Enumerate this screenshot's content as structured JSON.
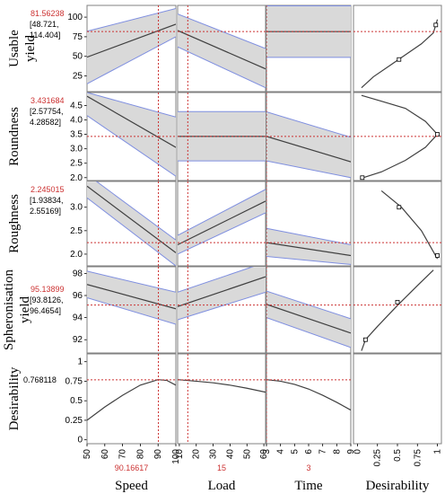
{
  "chart_data": {
    "type": "line",
    "title": "",
    "colors": {
      "band_fill": "#d9d9d9",
      "band_edge": "#7f8fe0",
      "line": "#404040",
      "crosshair": "#cc3333",
      "value_red": "#cc3333",
      "frame": "#808080"
    },
    "factors": [
      {
        "name": "Speed",
        "setting": "90.16617",
        "ticks": [
          "50",
          "60",
          "70",
          "80",
          "90",
          "100"
        ],
        "range": [
          50,
          100
        ],
        "current": 90.16617
      },
      {
        "name": "Load",
        "setting": "15",
        "ticks": [
          "10",
          "20",
          "30",
          "40",
          "50",
          "60"
        ],
        "range": [
          9,
          61
        ],
        "current": 15
      },
      {
        "name": "Time",
        "setting": "3",
        "ticks": [
          "3",
          "4",
          "5",
          "6",
          "7",
          "8",
          "9"
        ],
        "range": [
          3,
          9
        ],
        "current": 3
      },
      {
        "name": "Desirability",
        "setting": "",
        "ticks": [
          "0",
          "0.25",
          "0.5",
          "0.75",
          "1"
        ],
        "range": [
          -0.05,
          1.05
        ],
        "current": null
      }
    ],
    "responses": [
      {
        "name": "Usable yield",
        "value": "81.56238",
        "ci": "[48.721,",
        "ci2": "114.404]",
        "ticks": [
          "25",
          "50",
          "75",
          "100"
        ],
        "yrange": [
          5,
          115
        ],
        "ycur": 81.56,
        "panels": [
          {
            "x": [
              50,
              100
            ],
            "y": [
              49,
              91
            ],
            "lo": [
              15,
              75
            ],
            "hi": [
              82,
              111
            ]
          },
          {
            "x": [
              9,
              61
            ],
            "y": [
              83,
              34
            ],
            "lo": [
              62,
              10
            ],
            "hi": [
              104,
              60
            ]
          },
          {
            "x": [
              3,
              9
            ],
            "y": [
              81.56,
              81.56
            ],
            "lo": [
              48.7,
              48.7
            ],
            "hi": [
              114.4,
              114.4
            ]
          }
        ],
        "desir": {
          "x": [
            0.05,
            0.2,
            0.4,
            0.6,
            0.8,
            0.95,
            1.0
          ],
          "y": [
            10,
            24,
            38,
            52,
            66,
            80,
            97
          ],
          "markers": [
            [
              0.52,
              46
            ],
            [
              0.98,
              90
            ]
          ]
        }
      },
      {
        "name": "Roundness",
        "value": "3.431684",
        "ci": "[2.57754,",
        "ci2": "4.28582]",
        "ticks": [
          "2.0",
          "2.5",
          "3.0",
          "3.5",
          "4.0",
          "4.5"
        ],
        "yrange": [
          1.9,
          4.95
        ],
        "ycur": 3.43,
        "panels": [
          {
            "x": [
              50,
              100
            ],
            "y": [
              4.82,
              3.05
            ],
            "lo": [
              4.15,
              2.05
            ],
            "hi": [
              4.95,
              4.1
            ]
          },
          {
            "x": [
              9,
              61
            ],
            "y": [
              3.43,
              3.43
            ],
            "lo": [
              2.58,
              2.58
            ],
            "hi": [
              4.29,
              4.29
            ]
          },
          {
            "x": [
              3,
              9
            ],
            "y": [
              3.43,
              2.55
            ],
            "lo": [
              2.58,
              2.0
            ],
            "hi": [
              4.28,
              3.4
            ]
          }
        ],
        "desir": {
          "x": [
            0.05,
            0.3,
            0.6,
            0.85,
            1.0,
            0.85,
            0.6,
            0.3,
            0.05,
            0.05
          ],
          "y": [
            1.98,
            2.2,
            2.6,
            3.05,
            3.5,
            3.95,
            4.4,
            4.65,
            4.85,
            4.85
          ],
          "markers": [
            [
              0.06,
              2.0
            ],
            [
              1.0,
              3.5
            ]
          ]
        }
      },
      {
        "name": "Roughness",
        "value": "2.245015",
        "ci": "[1.93834,",
        "ci2": "2.55169]",
        "ticks": [
          "2.0",
          "2.5",
          "3.0"
        ],
        "yrange": [
          1.75,
          3.55
        ],
        "ycur": 2.245,
        "panels": [
          {
            "x": [
              50,
              100
            ],
            "y": [
              3.45,
              2.03
            ],
            "lo": [
              3.2,
              1.75
            ],
            "hi": [
              3.7,
              2.3
            ]
          },
          {
            "x": [
              9,
              61
            ],
            "y": [
              2.2,
              3.13
            ],
            "lo": [
              2.0,
              2.88
            ],
            "hi": [
              2.4,
              3.38
            ]
          },
          {
            "x": [
              3,
              9
            ],
            "y": [
              2.245,
              1.97
            ],
            "lo": [
              1.95,
              1.78
            ],
            "hi": [
              2.55,
              2.2
            ]
          }
        ],
        "desir": {
          "x": [
            0.3,
            0.55,
            0.8,
            1.0
          ],
          "y": [
            3.35,
            3.0,
            2.5,
            1.9
          ],
          "markers": [
            [
              0.52,
              3.0
            ],
            [
              1.0,
              1.97
            ]
          ]
        }
      },
      {
        "name": "Spheronisation yield",
        "value": "95.13899",
        "ci": "[93.8126,",
        "ci2": "96.4654]",
        "ticks": [
          "92",
          "94",
          "96",
          "98"
        ],
        "yrange": [
          90.8,
          98.6
        ],
        "ycur": 95.14,
        "panels": [
          {
            "x": [
              50,
              100
            ],
            "y": [
              97.0,
              94.8
            ],
            "lo": [
              95.8,
              93.4
            ],
            "hi": [
              98.2,
              96.3
            ]
          },
          {
            "x": [
              9,
              61
            ],
            "y": [
              95.0,
              97.7
            ],
            "lo": [
              93.8,
              96.3
            ],
            "hi": [
              96.3,
              99.0
            ]
          },
          {
            "x": [
              3,
              9
            ],
            "y": [
              95.2,
              92.6
            ],
            "lo": [
              94.0,
              91.3
            ],
            "hi": [
              96.4,
              93.9
            ]
          }
        ],
        "desir": {
          "x": [
            0.05,
            0.1,
            0.25,
            0.5,
            0.75,
            0.95
          ],
          "y": [
            91.0,
            92.0,
            93.2,
            95.1,
            96.9,
            98.3
          ],
          "markers": [
            [
              0.1,
              92.0
            ],
            [
              0.5,
              95.4
            ]
          ]
        }
      },
      {
        "name": "Desirability",
        "value": "0.768118",
        "ci": "",
        "ci2": "",
        "ticks": [
          "0",
          "0.25",
          "0.5",
          "0.75",
          "1"
        ],
        "yrange": [
          -0.05,
          1.1
        ],
        "ycur": 0.768,
        "panels": [
          {
            "x": [
              50,
              60,
              70,
              80,
              90,
              95,
              100
            ],
            "y": [
              0.25,
              0.42,
              0.57,
              0.7,
              0.77,
              0.76,
              0.7
            ]
          },
          {
            "x": [
              9,
              20,
              30,
              40,
              50,
              61
            ],
            "y": [
              0.77,
              0.75,
              0.73,
              0.7,
              0.66,
              0.61
            ]
          },
          {
            "x": [
              3,
              4,
              5,
              6,
              7,
              8,
              9
            ],
            "y": [
              0.77,
              0.75,
              0.71,
              0.65,
              0.57,
              0.48,
              0.38
            ]
          }
        ],
        "desir": null
      }
    ]
  }
}
